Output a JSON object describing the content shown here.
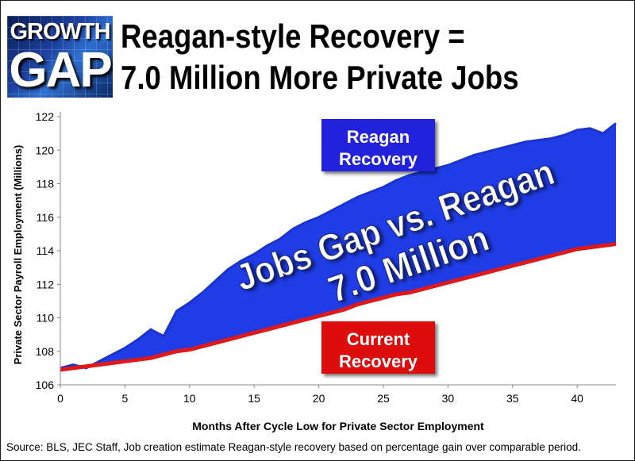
{
  "logo": {
    "line1": "GROWTH",
    "line2": "GAP"
  },
  "title": {
    "line1": "Reagan-style Recovery =",
    "line2": "7.0 Million More Private Jobs"
  },
  "source": "Source:  BLS, JEC  Staff,  Job creation estimate Reagan-style recovery based on percentage gain over comparable period.",
  "colors": {
    "reagan_fill": "#1f3ce6",
    "reagan_line": "#1a33d0",
    "current_line": "#e01818",
    "label_blue": "#2222dd",
    "label_red": "#dd1111"
  },
  "chart_data": {
    "type": "area",
    "xlabel": "Months After Cycle Low for Private Sector Employment",
    "ylabel": "Private Sector Payroll Employment (Millions)",
    "xlim": [
      0,
      43
    ],
    "ylim": [
      106,
      122
    ],
    "xticks": [
      0,
      5,
      10,
      15,
      20,
      25,
      30,
      35,
      40
    ],
    "yticks": [
      106,
      108,
      110,
      112,
      114,
      116,
      118,
      120,
      122
    ],
    "grid": false,
    "series": [
      {
        "name": "Reagan Recovery",
        "x": [
          0,
          1,
          2,
          3,
          4,
          5,
          6,
          7,
          8,
          9,
          10,
          11,
          12,
          13,
          14,
          15,
          16,
          17,
          18,
          19,
          20,
          21,
          22,
          23,
          24,
          25,
          26,
          27,
          28,
          29,
          30,
          31,
          32,
          33,
          34,
          35,
          36,
          37,
          38,
          39,
          40,
          41,
          42,
          43
        ],
        "values": [
          107.0,
          107.2,
          107.0,
          107.4,
          107.8,
          108.2,
          108.7,
          109.3,
          108.9,
          110.4,
          110.9,
          111.5,
          112.2,
          112.9,
          113.4,
          113.8,
          114.3,
          114.7,
          115.3,
          115.7,
          116.0,
          116.4,
          116.8,
          117.2,
          117.5,
          117.8,
          118.2,
          118.5,
          118.7,
          118.9,
          119.1,
          119.4,
          119.7,
          119.9,
          120.1,
          120.3,
          120.5,
          120.6,
          120.7,
          120.9,
          121.2,
          121.3,
          121.0,
          121.6
        ]
      },
      {
        "name": "Current Recovery",
        "x": [
          0,
          1,
          2,
          3,
          4,
          5,
          6,
          7,
          8,
          9,
          10,
          11,
          12,
          13,
          14,
          15,
          16,
          17,
          18,
          19,
          20,
          21,
          22,
          23,
          24,
          25,
          26,
          27,
          28,
          29,
          30,
          31,
          32,
          33,
          34,
          35,
          36,
          37,
          38,
          39,
          40,
          41,
          42,
          43
        ],
        "values": [
          106.9,
          107.0,
          107.1,
          107.2,
          107.3,
          107.4,
          107.5,
          107.6,
          107.8,
          108.0,
          108.1,
          108.3,
          108.5,
          108.7,
          108.9,
          109.1,
          109.3,
          109.5,
          109.7,
          109.9,
          110.1,
          110.3,
          110.5,
          110.8,
          111.0,
          111.2,
          111.4,
          111.5,
          111.7,
          111.9,
          112.1,
          112.3,
          112.5,
          112.7,
          112.9,
          113.1,
          113.3,
          113.5,
          113.7,
          113.9,
          114.1,
          114.2,
          114.3,
          114.4
        ]
      }
    ],
    "labels": {
      "reagan": [
        "Reagan",
        "Recovery"
      ],
      "current": [
        "Current",
        "Recovery"
      ],
      "gap": [
        "Jobs Gap vs. Reagan",
        "7.0 Million"
      ]
    }
  }
}
